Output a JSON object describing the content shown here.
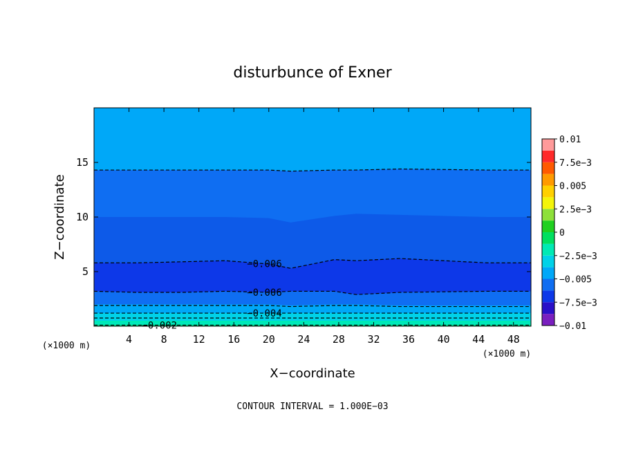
{
  "chart_data": {
    "type": "contour",
    "title": "disturbunce of Exner",
    "xlabel": "X−coordinate",
    "ylabel": "Z−coordinate",
    "x_unit": "(×1000 m)",
    "z_unit": "(×1000 m)",
    "xlim": [
      0,
      50
    ],
    "ylim": [
      0,
      20
    ],
    "x_ticks": [
      4,
      8,
      12,
      16,
      20,
      24,
      28,
      32,
      36,
      40,
      44,
      48
    ],
    "x_tick_labels": [
      "4",
      "8",
      "12",
      "16",
      "20",
      "24",
      "28",
      "32",
      "36",
      "40",
      "44",
      "48"
    ],
    "y_ticks": [
      5,
      10,
      15
    ],
    "y_tick_labels": [
      "5",
      "10",
      "15"
    ],
    "footer": "CONTOUR INTERVAL = 1.000E−03",
    "colorbar": {
      "range": [
        -0.01,
        0.01
      ],
      "tick_values": [
        0.01,
        0.0075,
        0.005,
        0.0025,
        0,
        -0.0025,
        -0.005,
        -0.0075,
        -0.01
      ],
      "tick_labels": [
        "0.01",
        "7.5e−3",
        "0.005",
        "2.5e−3",
        "0",
        "−2.5e−3",
        "−0.005",
        "−7.5e−3",
        "−0.01"
      ],
      "bins_low_to_high": [
        {
          "min": -0.01,
          "max": -0.00875,
          "color": "#7a1fbf"
        },
        {
          "min": -0.00875,
          "max": -0.0075,
          "color": "#2a10c8"
        },
        {
          "min": -0.0075,
          "max": -0.00625,
          "color": "#0d38e8"
        },
        {
          "min": -0.00625,
          "max": -0.005,
          "color": "#0f6ef2"
        },
        {
          "min": -0.005,
          "max": -0.00375,
          "color": "#00a8f8"
        },
        {
          "min": -0.00375,
          "max": -0.0025,
          "color": "#00d2e8"
        },
        {
          "min": -0.0025,
          "max": -0.00125,
          "color": "#00eab4"
        },
        {
          "min": -0.00125,
          "max": 0,
          "color": "#00e060"
        },
        {
          "min": 0,
          "max": 0.00125,
          "color": "#20d020"
        },
        {
          "min": 0.00125,
          "max": 0.0025,
          "color": "#8ee03a"
        },
        {
          "min": 0.0025,
          "max": 0.00375,
          "color": "#f4f40a"
        },
        {
          "min": 0.00375,
          "max": 0.005,
          "color": "#ffd000"
        },
        {
          "min": 0.005,
          "max": 0.00625,
          "color": "#ff9a00"
        },
        {
          "min": 0.00625,
          "max": 0.0075,
          "color": "#ff5a00"
        },
        {
          "min": 0.0075,
          "max": 0.00875,
          "color": "#ff2a2a"
        },
        {
          "min": 0.00875,
          "max": 0.01,
          "color": "#ff9a9a"
        }
      ]
    },
    "filled_levels": [
      {
        "level": -0.005,
        "color": "#00a8f8",
        "z": [
          19.99,
          19.99,
          19.99,
          19.99,
          19.99,
          19.99,
          19.99,
          19.99,
          19.99,
          19.99,
          19.99
        ]
      },
      {
        "level": -0.006,
        "color": "#0f6ef2",
        "z": [
          14.3,
          14.3,
          14.3,
          14.3,
          14.3,
          14.2,
          14.3,
          14.3,
          14.4,
          14.3,
          14.3
        ]
      },
      {
        "level": -0.00625,
        "color": "#0d5ae8",
        "z": [
          10.0,
          10.0,
          10.0,
          10.0,
          9.9,
          9.5,
          10.1,
          10.3,
          10.2,
          10.0,
          10.0
        ]
      },
      {
        "level": -0.007,
        "color": "#0d38e8",
        "z": [
          5.8,
          5.8,
          5.9,
          6.0,
          5.7,
          5.3,
          6.1,
          6.0,
          6.2,
          5.8,
          5.8
        ]
      },
      {
        "level": -0.0065,
        "color": "#0f6ef2",
        "z": [
          3.2,
          3.1,
          3.1,
          3.2,
          3.1,
          3.2,
          3.2,
          2.9,
          3.1,
          3.2,
          3.2
        ]
      },
      {
        "level": -0.005,
        "color": "#00a8f8",
        "z": [
          2.0,
          2.0,
          2.0,
          2.0,
          2.0,
          1.9,
          2.0,
          2.0,
          1.9,
          1.9,
          1.9
        ]
      },
      {
        "level": -0.004,
        "color": "#00d2e8",
        "z": [
          1.2,
          1.2,
          1.2,
          1.2,
          1.2,
          1.2,
          1.2,
          1.2,
          1.2,
          1.2,
          1.2
        ]
      },
      {
        "level": -0.003,
        "color": "#00eab4",
        "z": [
          0.5,
          0.5,
          0.5,
          0.5,
          0.5,
          0.5,
          0.5,
          0.5,
          0.5,
          0.5,
          0.5
        ]
      }
    ],
    "contour_x": [
      0,
      5,
      10,
      15,
      20,
      22.5,
      27.5,
      30,
      35,
      45,
      50
    ],
    "contour_lines": [
      {
        "label": "",
        "z": [
          14.3,
          14.3,
          14.3,
          14.3,
          14.3,
          14.2,
          14.3,
          14.3,
          14.4,
          14.3,
          14.3
        ]
      },
      {
        "label": "−0.006",
        "label_x": 19.5,
        "z": [
          5.8,
          5.8,
          5.9,
          6.0,
          5.7,
          5.3,
          6.1,
          6.0,
          6.2,
          5.8,
          5.8
        ]
      },
      {
        "label": "−0.006",
        "label_x": 19.5,
        "z": [
          3.2,
          3.1,
          3.1,
          3.2,
          3.1,
          3.2,
          3.2,
          2.9,
          3.1,
          3.2,
          3.2
        ]
      },
      {
        "label": "",
        "z": [
          1.9,
          1.9,
          1.9,
          1.9,
          1.9,
          1.8,
          1.9,
          1.9,
          1.8,
          1.8,
          1.8
        ]
      },
      {
        "label": "−0.004",
        "label_x": 19.5,
        "z": [
          1.2,
          1.2,
          1.2,
          1.2,
          1.2,
          1.2,
          1.2,
          1.2,
          1.2,
          1.2,
          1.2
        ]
      },
      {
        "label": "",
        "z": [
          0.75,
          0.75,
          0.75,
          0.75,
          0.75,
          0.75,
          0.75,
          0.75,
          0.75,
          0.75,
          0.75
        ]
      },
      {
        "label": "−0.002",
        "label_x": 7.5,
        "z": [
          0.1,
          0.1,
          0.1,
          0.1,
          0.1,
          0.1,
          0.1,
          0.1,
          0.1,
          0.1,
          0.1
        ]
      }
    ]
  }
}
